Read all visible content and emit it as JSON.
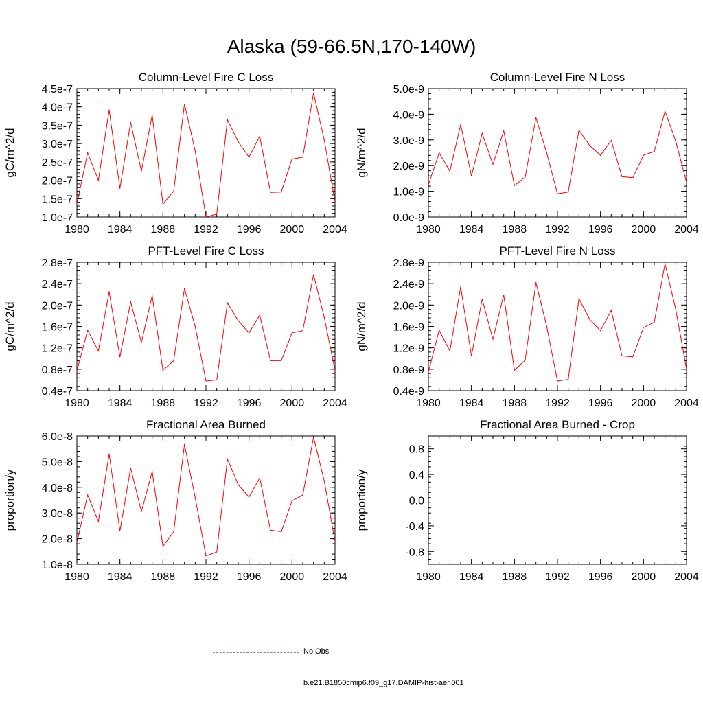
{
  "title": "Alaska (59-66.5N,170-140W)",
  "colors": {
    "series": "#ff0000",
    "obs": "#7b7bd6",
    "axis": "#000000"
  },
  "legend": [
    {
      "label": "No Obs",
      "style": "dashed",
      "color": "#7b7bd6"
    },
    {
      "label": "b.e21.B1850cmip6.f09_g17.DAMIP-hist-aer.001",
      "style": "solid",
      "color": "#ff0000"
    }
  ],
  "chart_data": [
    {
      "type": "line",
      "title": "Column-Level Fire C Loss",
      "ylabel": "gC/m^2/d",
      "xlim": [
        1980,
        2004
      ],
      "ylim": [
        1e-07,
        4.5e-07
      ],
      "xticks": [
        1980,
        1984,
        1988,
        1992,
        1996,
        2000,
        2004
      ],
      "xtick_labels": [
        "1980",
        "1984",
        "1988",
        "1992",
        "1996",
        "2000",
        "2004"
      ],
      "yticks": [
        1e-07,
        1.5e-07,
        2e-07,
        2.5e-07,
        3e-07,
        3.5e-07,
        4e-07,
        4.5e-07
      ],
      "ytick_labels": [
        "1.0e-7",
        "1.5e-7",
        "2.0e-7",
        "2.5e-7",
        "3.0e-7",
        "3.5e-7",
        "4.0e-7",
        "4.5e-7"
      ],
      "x": [
        1980,
        1981,
        1982,
        1983,
        1984,
        1985,
        1986,
        1987,
        1988,
        1989,
        1990,
        1991,
        1992,
        1993,
        1994,
        1995,
        1996,
        1997,
        1998,
        1999,
        2000,
        2001,
        2002,
        2003,
        2004
      ],
      "series": [
        {
          "values": [
            1.35e-07,
            2.75e-07,
            2e-07,
            3.92e-07,
            1.78e-07,
            3.58e-07,
            2.25e-07,
            3.78e-07,
            1.35e-07,
            1.7e-07,
            4.08e-07,
            2.8e-07,
            1e-07,
            1.08e-07,
            3.65e-07,
            3.05e-07,
            2.63e-07,
            3.2e-07,
            1.67e-07,
            1.68e-07,
            2.58e-07,
            2.63e-07,
            4.38e-07,
            3.1e-07,
            1.4e-07
          ]
        }
      ]
    },
    {
      "type": "line",
      "title": "Column-Level Fire N Loss",
      "ylabel": "gN/m^2/d",
      "xlim": [
        1980,
        2004
      ],
      "ylim": [
        0.0,
        5e-09
      ],
      "xticks": [
        1980,
        1984,
        1988,
        1992,
        1996,
        2000,
        2004
      ],
      "xtick_labels": [
        "1980",
        "1984",
        "1988",
        "1992",
        "1996",
        "2000",
        "2004"
      ],
      "yticks": [
        0.0,
        1e-09,
        2e-09,
        3e-09,
        4e-09,
        5e-09
      ],
      "ytick_labels": [
        "0.0e-9",
        "1.0e-9",
        "2.0e-9",
        "3.0e-9",
        "4.0e-9",
        "5.0e-9"
      ],
      "x": [
        1980,
        1981,
        1982,
        1983,
        1984,
        1985,
        1986,
        1987,
        1988,
        1989,
        1990,
        1991,
        1992,
        1993,
        1994,
        1995,
        1996,
        1997,
        1998,
        1999,
        2000,
        2001,
        2002,
        2003,
        2004
      ],
      "series": [
        {
          "values": [
            1.25e-09,
            2.5e-09,
            1.78e-09,
            3.6e-09,
            1.6e-09,
            3.25e-09,
            2.05e-09,
            3.35e-09,
            1.22e-09,
            1.55e-09,
            3.87e-09,
            2.5e-09,
            9e-10,
            9.7e-10,
            3.38e-09,
            2.78e-09,
            2.4e-09,
            2.98e-09,
            1.57e-09,
            1.53e-09,
            2.4e-09,
            2.55e-09,
            4.12e-09,
            2.95e-09,
            1.35e-09
          ]
        }
      ]
    },
    {
      "type": "line",
      "title": "PFT-Level Fire C Loss",
      "ylabel": "gC/m^2/d",
      "xlim": [
        1980,
        2004
      ],
      "ylim": [
        4e-08,
        2.8e-07
      ],
      "xticks": [
        1980,
        1984,
        1988,
        1992,
        1996,
        2000,
        2004
      ],
      "xtick_labels": [
        "1980",
        "1984",
        "1988",
        "1992",
        "1996",
        "2000",
        "2004"
      ],
      "yticks": [
        4e-08,
        8e-08,
        1.2e-07,
        1.6e-07,
        2e-07,
        2.4e-07,
        2.8e-07
      ],
      "ytick_labels": [
        "0.4e-7",
        "0.8e-7",
        "1.2e-7",
        "1.6e-7",
        "2.0e-7",
        "2.4e-7",
        "2.8e-7"
      ],
      "x": [
        1980,
        1981,
        1982,
        1983,
        1984,
        1985,
        1986,
        1987,
        1988,
        1989,
        1990,
        1991,
        1992,
        1993,
        1994,
        1995,
        1996,
        1997,
        1998,
        1999,
        2000,
        2001,
        2002,
        2003,
        2004
      ],
      "series": [
        {
          "values": [
            7.7e-08,
            1.53e-07,
            1.14e-07,
            2.25e-07,
            1.03e-07,
            2.06e-07,
            1.3e-07,
            2.18e-07,
            7.8e-08,
            9.6e-08,
            2.31e-07,
            1.6e-07,
            5.8e-08,
            6e-08,
            2.04e-07,
            1.71e-07,
            1.48e-07,
            1.81e-07,
            9.6e-08,
            9.6e-08,
            1.48e-07,
            1.52e-07,
            2.57e-07,
            1.77e-07,
            7.8e-08
          ]
        }
      ]
    },
    {
      "type": "line",
      "title": "PFT-Level Fire N Loss",
      "ylabel": "gN/m^2/d",
      "xlim": [
        1980,
        2004
      ],
      "ylim": [
        4e-10,
        2.8e-09
      ],
      "xticks": [
        1980,
        1984,
        1988,
        1992,
        1996,
        2000,
        2004
      ],
      "xtick_labels": [
        "1980",
        "1984",
        "1988",
        "1992",
        "1996",
        "2000",
        "2004"
      ],
      "yticks": [
        4e-10,
        8e-10,
        1.2e-09,
        1.6e-09,
        2e-09,
        2.4e-09,
        2.8e-09
      ],
      "ytick_labels": [
        "0.4e-9",
        "0.8e-9",
        "1.2e-9",
        "1.6e-9",
        "2.0e-9",
        "2.4e-9",
        "2.8e-9"
      ],
      "x": [
        1980,
        1981,
        1982,
        1983,
        1984,
        1985,
        1986,
        1987,
        1988,
        1989,
        1990,
        1991,
        1992,
        1993,
        1994,
        1995,
        1996,
        1997,
        1998,
        1999,
        2000,
        2001,
        2002,
        2003,
        2004
      ],
      "series": [
        {
          "values": [
            7.5e-10,
            1.53e-09,
            1.14e-09,
            2.34e-09,
            1.05e-09,
            2.11e-09,
            1.36e-09,
            2.19e-09,
            7.8e-10,
            9.7e-10,
            2.42e-09,
            1.6e-09,
            5.8e-10,
            6.1e-10,
            2.12e-09,
            1.73e-09,
            1.52e-09,
            1.9e-09,
            1.05e-09,
            1.03e-09,
            1.58e-09,
            1.68e-09,
            2.77e-09,
            1.92e-09,
            8e-10
          ]
        }
      ]
    },
    {
      "type": "line",
      "title": "Fractional Area Burned",
      "ylabel": "proportion/y",
      "xlim": [
        1980,
        2004
      ],
      "ylim": [
        1e-08,
        6e-08
      ],
      "xticks": [
        1980,
        1984,
        1988,
        1992,
        1996,
        2000,
        2004
      ],
      "xtick_labels": [
        "1980",
        "1984",
        "1988",
        "1992",
        "1996",
        "2000",
        "2004"
      ],
      "yticks": [
        1e-08,
        2e-08,
        3e-08,
        4e-08,
        5e-08,
        6e-08
      ],
      "ytick_labels": [
        "1.0e-8",
        "2.0e-8",
        "3.0e-8",
        "4.0e-8",
        "5.0e-8",
        "6.0e-8"
      ],
      "x": [
        1980,
        1981,
        1982,
        1983,
        1984,
        1985,
        1986,
        1987,
        1988,
        1989,
        1990,
        1991,
        1992,
        1993,
        1994,
        1995,
        1996,
        1997,
        1998,
        1999,
        2000,
        2001,
        2002,
        2003,
        2004
      ],
      "series": [
        {
          "values": [
            1.85e-08,
            3.7e-08,
            2.67e-08,
            5.3e-08,
            2.3e-08,
            4.75e-08,
            3.05e-08,
            4.62e-08,
            1.7e-08,
            2.27e-08,
            5.67e-08,
            3.6e-08,
            1.33e-08,
            1.48e-08,
            5.1e-08,
            4.1e-08,
            3.62e-08,
            4.37e-08,
            2.33e-08,
            2.27e-08,
            3.47e-08,
            3.7e-08,
            5.95e-08,
            4.25e-08,
            1.88e-08
          ]
        }
      ]
    },
    {
      "type": "line",
      "title": "Fractional Area Burned - Crop",
      "ylabel": "proportion/y",
      "xlim": [
        1980,
        2004
      ],
      "ylim": [
        -1.0,
        1.0
      ],
      "xticks": [
        1980,
        1984,
        1988,
        1992,
        1996,
        2000,
        2004
      ],
      "xtick_labels": [
        "1980",
        "1984",
        "1988",
        "1992",
        "1996",
        "2000",
        "2004"
      ],
      "yticks": [
        -0.8,
        -0.4,
        0.0,
        0.4,
        0.8
      ],
      "ytick_labels": [
        "-0.8",
        "-0.4",
        "0.0",
        "0.4",
        "0.8"
      ],
      "x": [
        1980,
        2004
      ],
      "series": [
        {
          "values": [
            0.0,
            0.0
          ]
        }
      ]
    }
  ]
}
